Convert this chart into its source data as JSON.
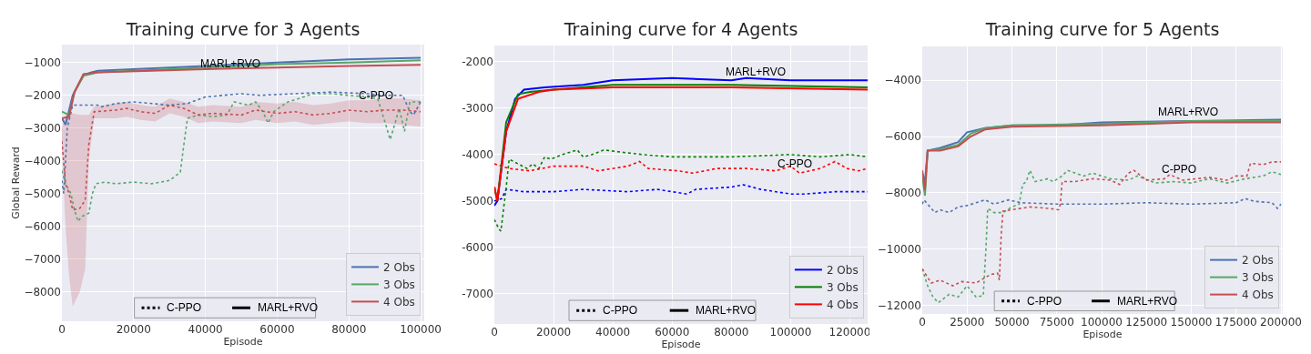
{
  "chart_data": [
    {
      "type": "line",
      "title": "Training curve for 3 Agents",
      "xlabel": "Episode",
      "ylabel": "Global Reward",
      "xlim": [
        0,
        101000
      ],
      "ylim": [
        -8900,
        -450
      ],
      "xticks": [
        0,
        20000,
        40000,
        60000,
        80000,
        100000
      ],
      "yticks": [
        {
          "value": -1000,
          "label": "−1000"
        },
        {
          "value": -2000,
          "label": "−2000"
        },
        {
          "value": -3000,
          "label": "−3000"
        },
        {
          "value": -4000,
          "label": "−4000"
        },
        {
          "value": -5000,
          "label": "−5000"
        },
        {
          "value": -6000,
          "label": "−6000"
        },
        {
          "value": -7000,
          "label": "−7000"
        },
        {
          "value": -8000,
          "label": "−8000"
        }
      ],
      "grid": true,
      "legend": "bottom right",
      "series": [
        {
          "color": "#4c72b0",
          "line_style": "dotted",
          "x": [
            0,
            500,
            1500,
            3000,
            10000,
            11000,
            15000,
            20000,
            25000,
            30000,
            35000,
            40000,
            45000,
            50000,
            55000,
            65000,
            75000,
            85000,
            90000,
            95000,
            97000,
            98000,
            100000
          ],
          "values": [
            -4600,
            -5000,
            -3000,
            -2300,
            -2300,
            -2350,
            -2250,
            -2200,
            -2250,
            -2300,
            -2250,
            -2050,
            -2000,
            -1950,
            -2000,
            -1950,
            -1900,
            -1950,
            -2000,
            -2000,
            -2500,
            -2600,
            -2200
          ]
        },
        {
          "color": "#55a868",
          "line_style": "dotted",
          "x": [
            0,
            1000,
            2500,
            3500,
            4500,
            5500,
            7500,
            8500,
            9500,
            12000,
            15000,
            20000,
            25000,
            30000,
            33000,
            34000,
            35000,
            38000,
            42000,
            46000,
            48000,
            52000,
            54000,
            56000,
            57500,
            59000,
            63000,
            66000,
            70000,
            75000,
            85000,
            88000,
            90000,
            91500,
            93000,
            94000,
            95500,
            97000,
            100000
          ],
          "values": [
            -4300,
            -4700,
            -5000,
            -5500,
            -5850,
            -5700,
            -5600,
            -5000,
            -4700,
            -4650,
            -4700,
            -4650,
            -4700,
            -4600,
            -4350,
            -3500,
            -2700,
            -2600,
            -2650,
            -2600,
            -2200,
            -2300,
            -2200,
            -2500,
            -2850,
            -2500,
            -2200,
            -2100,
            -1950,
            -1950,
            -2050,
            -2100,
            -2800,
            -3350,
            -2800,
            -2400,
            -3100,
            -2200,
            -2200
          ]
        },
        {
          "color": "#c44e52",
          "line_style": "dotted",
          "x": [
            0,
            1000,
            2000,
            3000,
            5000,
            6500,
            7500,
            9000,
            15000,
            18000,
            22000,
            26000,
            30000,
            34000,
            38000,
            42000,
            50000,
            54000,
            60000,
            65000,
            70000,
            75000,
            80000,
            85000,
            90000,
            95000,
            100000
          ],
          "values": [
            -3400,
            -4700,
            -5000,
            -5500,
            -5450,
            -5200,
            -3500,
            -2500,
            -2450,
            -2400,
            -2500,
            -2550,
            -2300,
            -2400,
            -2600,
            -2550,
            -2600,
            -2450,
            -2550,
            -2500,
            -2600,
            -2550,
            -2450,
            -2500,
            -2450,
            -2450,
            -2500
          ],
          "lower": [
            -3600,
            -6000,
            -7500,
            -8450,
            -8000,
            -7300,
            -4000,
            -2700,
            -2700,
            -2650,
            -2750,
            -2800,
            -2550,
            -2650,
            -2850,
            -2800,
            -2850,
            -2750,
            -2850,
            -2800,
            -2900,
            -2850,
            -2800,
            -2850,
            -2850,
            -2900,
            -2950
          ],
          "upper": [
            -3000,
            -2600,
            -2550,
            -2550,
            -2600,
            -2600,
            -2600,
            -2350,
            -2250,
            -2200,
            -2300,
            -2350,
            -2100,
            -2200,
            -2350,
            -2300,
            -2350,
            -2200,
            -2250,
            -2200,
            -2300,
            -2250,
            -2150,
            -2150,
            -2100,
            -2100,
            -2150
          ]
        },
        {
          "name": "2 Obs",
          "color": "#4c72b0",
          "line_style": "solid",
          "x": [
            0,
            1000,
            3000,
            6000,
            8000,
            10000,
            40000,
            60000,
            80000,
            100000
          ],
          "values": [
            -2700,
            -2900,
            -2000,
            -1400,
            -1300,
            -1250,
            -1100,
            -1000,
            -900,
            -850
          ]
        },
        {
          "name": "3 Obs",
          "color": "#55a868",
          "line_style": "solid",
          "x": [
            0,
            2000,
            3500,
            6000,
            10000,
            40000,
            60000,
            80000,
            100000
          ],
          "values": [
            -2500,
            -2600,
            -1900,
            -1400,
            -1300,
            -1150,
            -1050,
            -1000,
            -930
          ]
        },
        {
          "name": "4 Obs",
          "color": "#c44e52",
          "line_style": "solid",
          "x": [
            0,
            2000,
            3500,
            6000,
            10000,
            40000,
            60000,
            80000,
            100000
          ],
          "values": [
            -2700,
            -2650,
            -1900,
            -1350,
            -1300,
            -1200,
            -1150,
            -1100,
            -1070
          ]
        }
      ],
      "annotations": [
        "MARL+RVO",
        "C-PPO",
        "C-PPO",
        "MARL+RVO"
      ]
    },
    {
      "type": "line",
      "title": "Training curve for 4 Agents",
      "xlabel": "Episode",
      "xlim": [
        0,
        126000
      ],
      "ylim": [
        -7650,
        -1650
      ],
      "xticks": [
        0,
        20000,
        40000,
        60000,
        80000,
        100000,
        120000
      ],
      "yticks": [
        -2000,
        -3000,
        -4000,
        -5000,
        -6000,
        -7000
      ],
      "grid": true,
      "legend": "bottom right",
      "series": [
        {
          "color": "#0000ff",
          "line_style": "dotted",
          "x": [
            0,
            2500,
            4000,
            10000,
            20000,
            30000,
            45000,
            55000,
            65000,
            68000,
            80000,
            84000,
            90000,
            100000,
            105000,
            115000,
            126000
          ],
          "values": [
            -5000,
            -4950,
            -4750,
            -4800,
            -4800,
            -4750,
            -4800,
            -4750,
            -4850,
            -4750,
            -4700,
            -4650,
            -4750,
            -4850,
            -4850,
            -4800,
            -4800
          ]
        },
        {
          "color": "#008000",
          "line_style": "dotted",
          "x": [
            0,
            1500,
            2200,
            4000,
            5000,
            8000,
            11000,
            13000,
            15000,
            17000,
            19000,
            23000,
            28000,
            30000,
            33000,
            37000,
            43000,
            50000,
            60000,
            80000,
            100000,
            110000,
            120000,
            126000
          ],
          "values": [
            -5400,
            -5600,
            -5650,
            -4700,
            -4100,
            -4200,
            -4300,
            -4200,
            -4300,
            -4050,
            -4100,
            -4000,
            -3900,
            -4050,
            -4000,
            -3900,
            -3950,
            -4000,
            -4050,
            -4050,
            -4000,
            -4050,
            -4000,
            -4050
          ]
        },
        {
          "color": "#ff0000",
          "line_style": "dotted",
          "x": [
            0,
            5000,
            12000,
            20000,
            30000,
            35000,
            45000,
            49000,
            52000,
            62000,
            67000,
            75000,
            85000,
            95000,
            100000,
            103000,
            110000,
            115000,
            119000,
            123000,
            126000
          ],
          "values": [
            -4200,
            -4300,
            -4350,
            -4250,
            -4250,
            -4350,
            -4250,
            -4150,
            -4300,
            -4350,
            -4400,
            -4300,
            -4300,
            -4350,
            -4250,
            -4400,
            -4300,
            -4150,
            -4300,
            -4350,
            -4300
          ]
        },
        {
          "name": "2 Obs",
          "color": "#0000ff",
          "line_style": "solid",
          "x": [
            0,
            1000,
            4000,
            7000,
            10000,
            17000,
            30000,
            40000,
            60000,
            80000,
            85000,
            100000,
            126000
          ],
          "values": [
            -5100,
            -5000,
            -3500,
            -2800,
            -2600,
            -2550,
            -2500,
            -2400,
            -2350,
            -2400,
            -2350,
            -2400,
            -2400
          ]
        },
        {
          "name": "3 Obs",
          "color": "#008000",
          "line_style": "solid",
          "x": [
            0,
            1000,
            4000,
            8000,
            12000,
            20000,
            40000,
            80000,
            126000
          ],
          "values": [
            -4700,
            -5000,
            -3300,
            -2700,
            -2650,
            -2600,
            -2500,
            -2500,
            -2550
          ]
        },
        {
          "name": "4 Obs",
          "color": "#ff0000",
          "line_style": "solid",
          "x": [
            0,
            1000,
            4000,
            8000,
            15000,
            20000,
            40000,
            80000,
            126000
          ],
          "values": [
            -4700,
            -5000,
            -3500,
            -2800,
            -2650,
            -2600,
            -2550,
            -2550,
            -2600
          ]
        }
      ],
      "annotations": [
        "MARL+RVO",
        "C-PPO",
        "C-PPO",
        "MARL+RVO"
      ]
    },
    {
      "type": "line",
      "title": "Training curve for 5 Agents",
      "xlabel": "Episode",
      "xlim": [
        0,
        201000
      ],
      "ylim": [
        -12300,
        -2800
      ],
      "xticks": [
        0,
        25000,
        50000,
        75000,
        100000,
        125000,
        150000,
        175000,
        200000
      ],
      "yticks": [
        {
          "value": -4000,
          "label": "−4000"
        },
        {
          "value": -6000,
          "label": "−6000"
        },
        {
          "value": -8000,
          "label": "−8000"
        },
        {
          "value": -10000,
          "label": "−10000"
        },
        {
          "value": -12000,
          "label": "−12000"
        }
      ],
      "grid": true,
      "legend": "bottom right",
      "series": [
        {
          "color": "#4c72b0",
          "line_style": "dotted",
          "x": [
            0,
            1000,
            7000,
            10000,
            15000,
            20000,
            25000,
            30000,
            35000,
            40000,
            48000,
            55000,
            75000,
            100000,
            125000,
            150000,
            175000,
            180000,
            185000,
            195000,
            198000,
            200000
          ],
          "values": [
            -8400,
            -8250,
            -8700,
            -8600,
            -8700,
            -8500,
            -8450,
            -8350,
            -8250,
            -8400,
            -8250,
            -8350,
            -8400,
            -8400,
            -8350,
            -8400,
            -8350,
            -8200,
            -8300,
            -8350,
            -8550,
            -8400
          ]
        },
        {
          "color": "#55a868",
          "line_style": "dotted",
          "x": [
            0,
            3000,
            6000,
            9000,
            15000,
            20000,
            25000,
            30000,
            34000,
            35500,
            36500,
            40000,
            45000,
            50000,
            54000,
            56000,
            58000,
            60000,
            63000,
            70000,
            73000,
            78000,
            81000,
            90000,
            95000,
            105000,
            115000,
            120000,
            130000,
            140000,
            150000,
            160000,
            170000,
            180000,
            190000,
            195000,
            200000
          ],
          "values": [
            -10700,
            -11300,
            -11700,
            -11900,
            -11600,
            -11700,
            -11300,
            -11700,
            -11650,
            -10000,
            -8550,
            -8700,
            -8700,
            -8500,
            -8400,
            -7700,
            -7600,
            -7200,
            -7600,
            -7500,
            -7600,
            -7400,
            -7200,
            -7400,
            -7300,
            -7500,
            -7550,
            -7400,
            -7650,
            -7600,
            -7650,
            -7500,
            -7650,
            -7500,
            -7400,
            -7250,
            -7350
          ]
        },
        {
          "color": "#c44e52",
          "line_style": "dotted",
          "x": [
            0,
            5000,
            10000,
            17000,
            22000,
            30000,
            38000,
            42000,
            43000,
            44000,
            45000,
            50000,
            60000,
            70000,
            76000,
            77000,
            78000,
            85000,
            95000,
            105000,
            110000,
            115000,
            118000,
            125000,
            135000,
            138000,
            145000,
            160000,
            170000,
            175000,
            181000,
            183000,
            190000,
            195000,
            200000
          ],
          "values": [
            -10700,
            -11200,
            -11100,
            -11300,
            -11150,
            -11200,
            -10900,
            -10850,
            -11100,
            -9500,
            -8650,
            -8600,
            -8500,
            -8550,
            -8600,
            -8400,
            -7600,
            -7600,
            -7500,
            -7550,
            -7700,
            -7300,
            -7200,
            -7550,
            -7500,
            -7350,
            -7550,
            -7450,
            -7550,
            -7400,
            -7400,
            -6950,
            -7000,
            -6900,
            -6900
          ]
        },
        {
          "name": "2 Obs",
          "color": "#4c72b0",
          "line_style": "solid",
          "x": [
            0,
            1500,
            3000,
            10000,
            20000,
            25000,
            35000,
            50000,
            75000,
            100000,
            150000,
            200000
          ],
          "values": [
            -7300,
            -7600,
            -6500,
            -6400,
            -6200,
            -5850,
            -5700,
            -5600,
            -5600,
            -5500,
            -5450,
            -5400
          ]
        },
        {
          "name": "3 Obs",
          "color": "#55a868",
          "line_style": "solid",
          "x": [
            0,
            1500,
            3000,
            10000,
            20000,
            27000,
            35000,
            50000,
            100000,
            150000,
            200000
          ],
          "values": [
            -7400,
            -8100,
            -6500,
            -6450,
            -6300,
            -5900,
            -5700,
            -5600,
            -5550,
            -5450,
            -5450
          ]
        },
        {
          "name": "4 Obs",
          "color": "#c44e52",
          "line_style": "solid",
          "x": [
            0,
            1500,
            3000,
            10000,
            20000,
            27000,
            35000,
            50000,
            100000,
            150000,
            200000
          ],
          "values": [
            -7200,
            -7900,
            -6500,
            -6500,
            -6350,
            -6000,
            -5750,
            -5650,
            -5600,
            -5500,
            -5500
          ]
        }
      ],
      "annotations": [
        "MARL+RVO",
        "C-PPO",
        "C-PPO",
        "MARL+RVO"
      ]
    }
  ]
}
